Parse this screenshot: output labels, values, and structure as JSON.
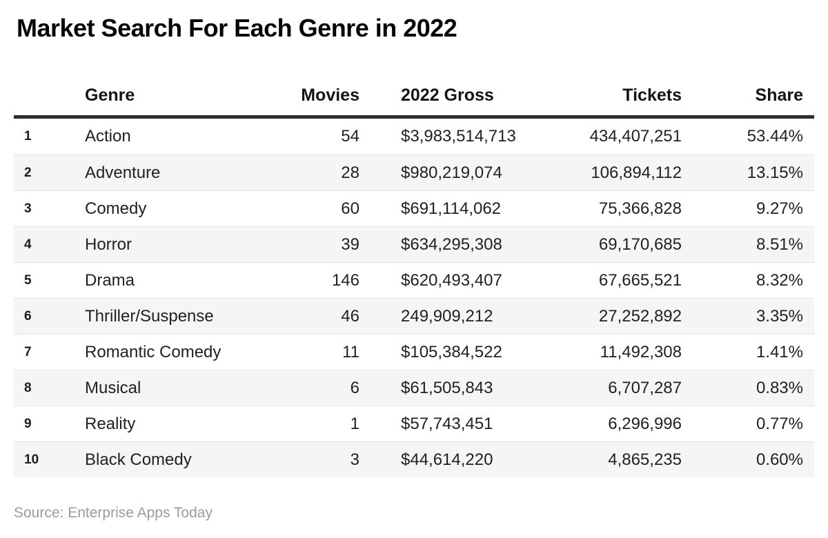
{
  "chart_data": {
    "type": "table",
    "title": "Market Search For Each Genre in 2022",
    "columns": [
      "Genre",
      "Movies",
      "2022 Gross",
      "Tickets",
      "Share"
    ],
    "rows": [
      {
        "rank": "1",
        "genre": "Action",
        "movies": "54",
        "gross": "$3,983,514,713",
        "tickets": "434,407,251",
        "share": "53.44%"
      },
      {
        "rank": "2",
        "genre": "Adventure",
        "movies": "28",
        "gross": "$980,219,074",
        "tickets": "106,894,112",
        "share": "13.15%"
      },
      {
        "rank": "3",
        "genre": "Comedy",
        "movies": "60",
        "gross": "$691,114,062",
        "tickets": "75,366,828",
        "share": "9.27%"
      },
      {
        "rank": "4",
        "genre": "Horror",
        "movies": "39",
        "gross": "$634,295,308",
        "tickets": "69,170,685",
        "share": "8.51%"
      },
      {
        "rank": "5",
        "genre": "Drama",
        "movies": "146",
        "gross": "$620,493,407",
        "tickets": "67,665,521",
        "share": "8.32%"
      },
      {
        "rank": "6",
        "genre": "Thriller/Suspense",
        "movies": "46",
        "gross": "249,909,212",
        "tickets": "27,252,892",
        "share": "3.35%"
      },
      {
        "rank": "7",
        "genre": "Romantic Comedy",
        "movies": "11",
        "gross": "$105,384,522",
        "tickets": "11,492,308",
        "share": "1.41%"
      },
      {
        "rank": "8",
        "genre": "Musical",
        "movies": "6",
        "gross": "$61,505,843",
        "tickets": "6,707,287",
        "share": "0.83%"
      },
      {
        "rank": "9",
        "genre": "Reality",
        "movies": "1",
        "gross": "$57,743,451",
        "tickets": "6,296,996",
        "share": "0.77%"
      },
      {
        "rank": "10",
        "genre": "Black Comedy",
        "movies": "3",
        "gross": "$44,614,220",
        "tickets": "4,865,235",
        "share": "0.60%"
      }
    ],
    "source": "Source: Enterprise Apps Today",
    "layout": {
      "legend": "none",
      "grid": "horizontal-row-bands",
      "colors": {
        "row_band": "#f5f5f5",
        "header_rule": "#2d2d2d",
        "row_separator": "#e3e3e3",
        "text": "#212121",
        "source_text": "#9b9b9b"
      }
    }
  }
}
